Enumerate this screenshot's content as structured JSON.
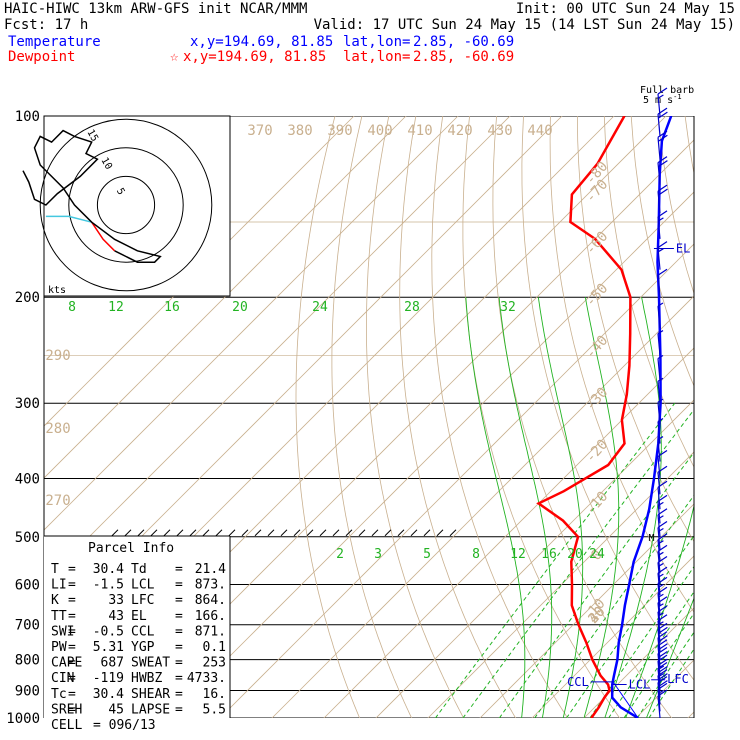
{
  "header": {
    "title": "HAIC-HIWC 13km ARW-GFS init  NCAR/MMM",
    "init": "Init: 00 UTC Sun 24 May 15",
    "fcst": "Fcst:   17 h",
    "valid": "Valid: 17 UTC Sun 24 May 15 (14 LST Sun 24 May 15)",
    "temperature_label": "Temperature",
    "dewpoint_label": "Dewpoint",
    "temperature_xy": "x,y=194.69, 81.85",
    "dewpoint_xy": "x,y=194.69, 81.85",
    "dewpoint_marker": "☆",
    "latlon_label": "lat,lon=",
    "latlon_value": "2.85, -60.69"
  },
  "colors": {
    "temperature": "#0000ff",
    "dewpoint": "#ff0000",
    "dry_adiabat": "#c9b08f",
    "isotherm": "#c9b08f",
    "mixing_ratio": "#22b322",
    "moist_adiabat": "#22b322",
    "hodograph_low": "#44c8e0"
  },
  "chart_data": {
    "type": "line",
    "subtype": "skew-T log-p sounding",
    "y_axis": {
      "scale": "log",
      "ylim": [
        1000,
        100
      ],
      "ticks": [
        100,
        200,
        300,
        400,
        500,
        600,
        700,
        800,
        900,
        1000
      ]
    },
    "x_axis": {
      "label": "",
      "xlim_celsius": [
        -40,
        40
      ],
      "skewed_ticks": [
        -80,
        -70,
        -60,
        -50,
        -40,
        -30,
        -20,
        -10,
        0,
        10,
        20,
        30,
        40
      ]
    },
    "dry_adiabat_labels": [
      "370",
      "380",
      "390",
      "400",
      "410",
      "420",
      "430",
      "440",
      "290",
      "280",
      "270"
    ],
    "mixing_ratio_labels_upper": [
      "8",
      "12",
      "16",
      "20",
      "24",
      "28",
      "32"
    ],
    "mixing_ratio_labels_lower": [
      "2",
      "3",
      "5",
      "8",
      "12",
      "16",
      "20",
      "24"
    ],
    "series": [
      {
        "name": "Temperature",
        "color": "#0000ff",
        "points": [
          [
            1000,
            30.4
          ],
          [
            960,
            25.0
          ],
          [
            925,
            21.5
          ],
          [
            880,
            19.0
          ],
          [
            850,
            17.6
          ],
          [
            800,
            15.2
          ],
          [
            750,
            12.2
          ],
          [
            700,
            9.4
          ],
          [
            650,
            6.2
          ],
          [
            600,
            3.0
          ],
          [
            550,
            -0.5
          ],
          [
            500,
            -3.6
          ],
          [
            450,
            -7.6
          ],
          [
            400,
            -12.6
          ],
          [
            350,
            -18.5
          ],
          [
            300,
            -25.8
          ],
          [
            250,
            -35.0
          ],
          [
            200,
            -46.5
          ],
          [
            175,
            -53.5
          ],
          [
            150,
            -61.0
          ],
          [
            125,
            -70.0
          ],
          [
            110,
            -76.0
          ],
          [
            100,
            -79.0
          ]
        ]
      },
      {
        "name": "Dewpoint",
        "color": "#ff0000",
        "points": [
          [
            1000,
            21.4
          ],
          [
            960,
            20.8
          ],
          [
            925,
            20.0
          ],
          [
            900,
            19.6
          ],
          [
            880,
            18.2
          ],
          [
            850,
            15.0
          ],
          [
            800,
            10.4
          ],
          [
            750,
            6.0
          ],
          [
            700,
            1.0
          ],
          [
            650,
            -4.0
          ],
          [
            600,
            -8.0
          ],
          [
            550,
            -12.5
          ],
          [
            500,
            -16.0
          ],
          [
            470,
            -22.0
          ],
          [
            440,
            -30.0
          ],
          [
            420,
            -27.5
          ],
          [
            380,
            -24.0
          ],
          [
            350,
            -25.0
          ],
          [
            320,
            -30.0
          ],
          [
            290,
            -34.0
          ],
          [
            260,
            -39.0
          ],
          [
            230,
            -45.0
          ],
          [
            200,
            -52.0
          ],
          [
            180,
            -59.0
          ],
          [
            160,
            -70.0
          ],
          [
            150,
            -78.0
          ],
          [
            135,
            -83.0
          ],
          [
            120,
            -84.0
          ],
          [
            100,
            -88.0
          ]
        ]
      }
    ],
    "level_markers": [
      {
        "label": "CCL",
        "pressure": 871
      },
      {
        "label": "LCL",
        "pressure": 873
      },
      {
        "label": "LFC",
        "pressure": 864
      },
      {
        "label": "EL",
        "pressure": 166
      },
      {
        "label": "M",
        "pressure": 500
      }
    ],
    "wind_profile": {
      "title": "Full barb",
      "units": "5 m s",
      "units_exp": "-1",
      "barbs": [
        {
          "p": 1000,
          "dir": 100,
          "spd": 7
        },
        {
          "p": 975,
          "dir": 95,
          "spd": 9
        },
        {
          "p": 950,
          "dir": 92,
          "spd": 11
        },
        {
          "p": 925,
          "dir": 90,
          "spd": 12
        },
        {
          "p": 900,
          "dir": 88,
          "spd": 13
        },
        {
          "p": 875,
          "dir": 87,
          "spd": 13
        },
        {
          "p": 850,
          "dir": 86,
          "spd": 12
        },
        {
          "p": 825,
          "dir": 86,
          "spd": 11
        },
        {
          "p": 800,
          "dir": 86,
          "spd": 10
        },
        {
          "p": 775,
          "dir": 85,
          "spd": 10
        },
        {
          "p": 750,
          "dir": 85,
          "spd": 9
        },
        {
          "p": 725,
          "dir": 85,
          "spd": 9
        },
        {
          "p": 700,
          "dir": 85,
          "spd": 8
        },
        {
          "p": 675,
          "dir": 86,
          "spd": 8
        },
        {
          "p": 650,
          "dir": 87,
          "spd": 8
        },
        {
          "p": 625,
          "dir": 88,
          "spd": 8
        },
        {
          "p": 600,
          "dir": 88,
          "spd": 8
        },
        {
          "p": 575,
          "dir": 88,
          "spd": 9
        },
        {
          "p": 550,
          "dir": 88,
          "spd": 9
        },
        {
          "p": 525,
          "dir": 88,
          "spd": 9
        },
        {
          "p": 500,
          "dir": 88,
          "spd": 9
        },
        {
          "p": 475,
          "dir": 88,
          "spd": 8
        },
        {
          "p": 450,
          "dir": 86,
          "spd": 7
        },
        {
          "p": 425,
          "dir": 84,
          "spd": 6
        },
        {
          "p": 400,
          "dir": 80,
          "spd": 5
        },
        {
          "p": 375,
          "dir": 70,
          "spd": 4
        },
        {
          "p": 350,
          "dir": 50,
          "spd": 3
        },
        {
          "p": 325,
          "dir": 30,
          "spd": 3
        },
        {
          "p": 300,
          "dir": 20,
          "spd": 4
        },
        {
          "p": 275,
          "dir": 40,
          "spd": 3
        },
        {
          "p": 250,
          "dir": 60,
          "spd": 3
        },
        {
          "p": 225,
          "dir": 90,
          "spd": 4
        },
        {
          "p": 200,
          "dir": 110,
          "spd": 6
        },
        {
          "p": 180,
          "dir": 120,
          "spd": 8
        },
        {
          "p": 160,
          "dir": 125,
          "spd": 9
        },
        {
          "p": 145,
          "dir": 120,
          "spd": 10
        },
        {
          "p": 130,
          "dir": 115,
          "spd": 11
        },
        {
          "p": 118,
          "dir": 110,
          "spd": 11
        },
        {
          "p": 108,
          "dir": 105,
          "spd": 10
        },
        {
          "p": 100,
          "dir": 100,
          "spd": 8
        }
      ]
    },
    "hodograph": {
      "units_label": "kts",
      "rings": [
        "5",
        "10",
        "15"
      ],
      "trace_u_v_kts": [
        [
          -14,
          -2
        ],
        [
          -10,
          -2
        ],
        [
          -6,
          -3
        ],
        [
          -4,
          -6
        ],
        [
          -2,
          -8
        ],
        [
          0,
          -9
        ],
        [
          2,
          -10
        ],
        [
          5,
          -10
        ],
        [
          6,
          -9
        ],
        [
          2,
          -8
        ],
        [
          -2,
          -6
        ],
        [
          -6,
          -3
        ],
        [
          -9,
          0
        ],
        [
          -11,
          3
        ],
        [
          -13,
          5
        ],
        [
          -15,
          7
        ],
        [
          -16,
          10
        ],
        [
          -15,
          12
        ],
        [
          -13,
          11
        ],
        [
          -11,
          13
        ],
        [
          -9,
          12
        ],
        [
          -6,
          11
        ],
        [
          -7,
          9
        ],
        [
          -5,
          8
        ],
        [
          -8,
          5
        ],
        [
          -12,
          2
        ],
        [
          -14,
          0
        ],
        [
          -16,
          1
        ],
        [
          -17,
          4
        ],
        [
          -18,
          6
        ]
      ]
    }
  },
  "parcel_info": {
    "title": "Parcel Info",
    "rows": [
      {
        "l1": "T",
        "v1": "30.4",
        "l2": "Td",
        "v2": "21.4"
      },
      {
        "l1": "LI",
        "v1": "-1.5",
        "l2": "LCL",
        "v2": "873."
      },
      {
        "l1": "K",
        "v1": "33",
        "l2": "LFC",
        "v2": "864."
      },
      {
        "l1": "TT",
        "v1": "43",
        "l2": "EL",
        "v2": "166."
      },
      {
        "l1": "SWI",
        "v1": "-0.5",
        "l2": "CCL",
        "v2": "871."
      },
      {
        "l1": "PW",
        "v1": "5.31",
        "l2": "YGP",
        "v2": "0.1"
      },
      {
        "l1": "CAPE",
        "v1": "687",
        "l2": "SWEAT",
        "v2": "253"
      },
      {
        "l1": "CIN",
        "v1": "-119",
        "l2": "HWBZ",
        "v2": "4733."
      },
      {
        "l1": "Tc",
        "v1": "30.4",
        "l2": "SHEAR",
        "v2": "16."
      },
      {
        "l1": "SREH",
        "v1": "45",
        "l2": "LAPSE",
        "v2": "5.5"
      }
    ],
    "cell_label": "CELL",
    "cell_value": "096/13"
  }
}
